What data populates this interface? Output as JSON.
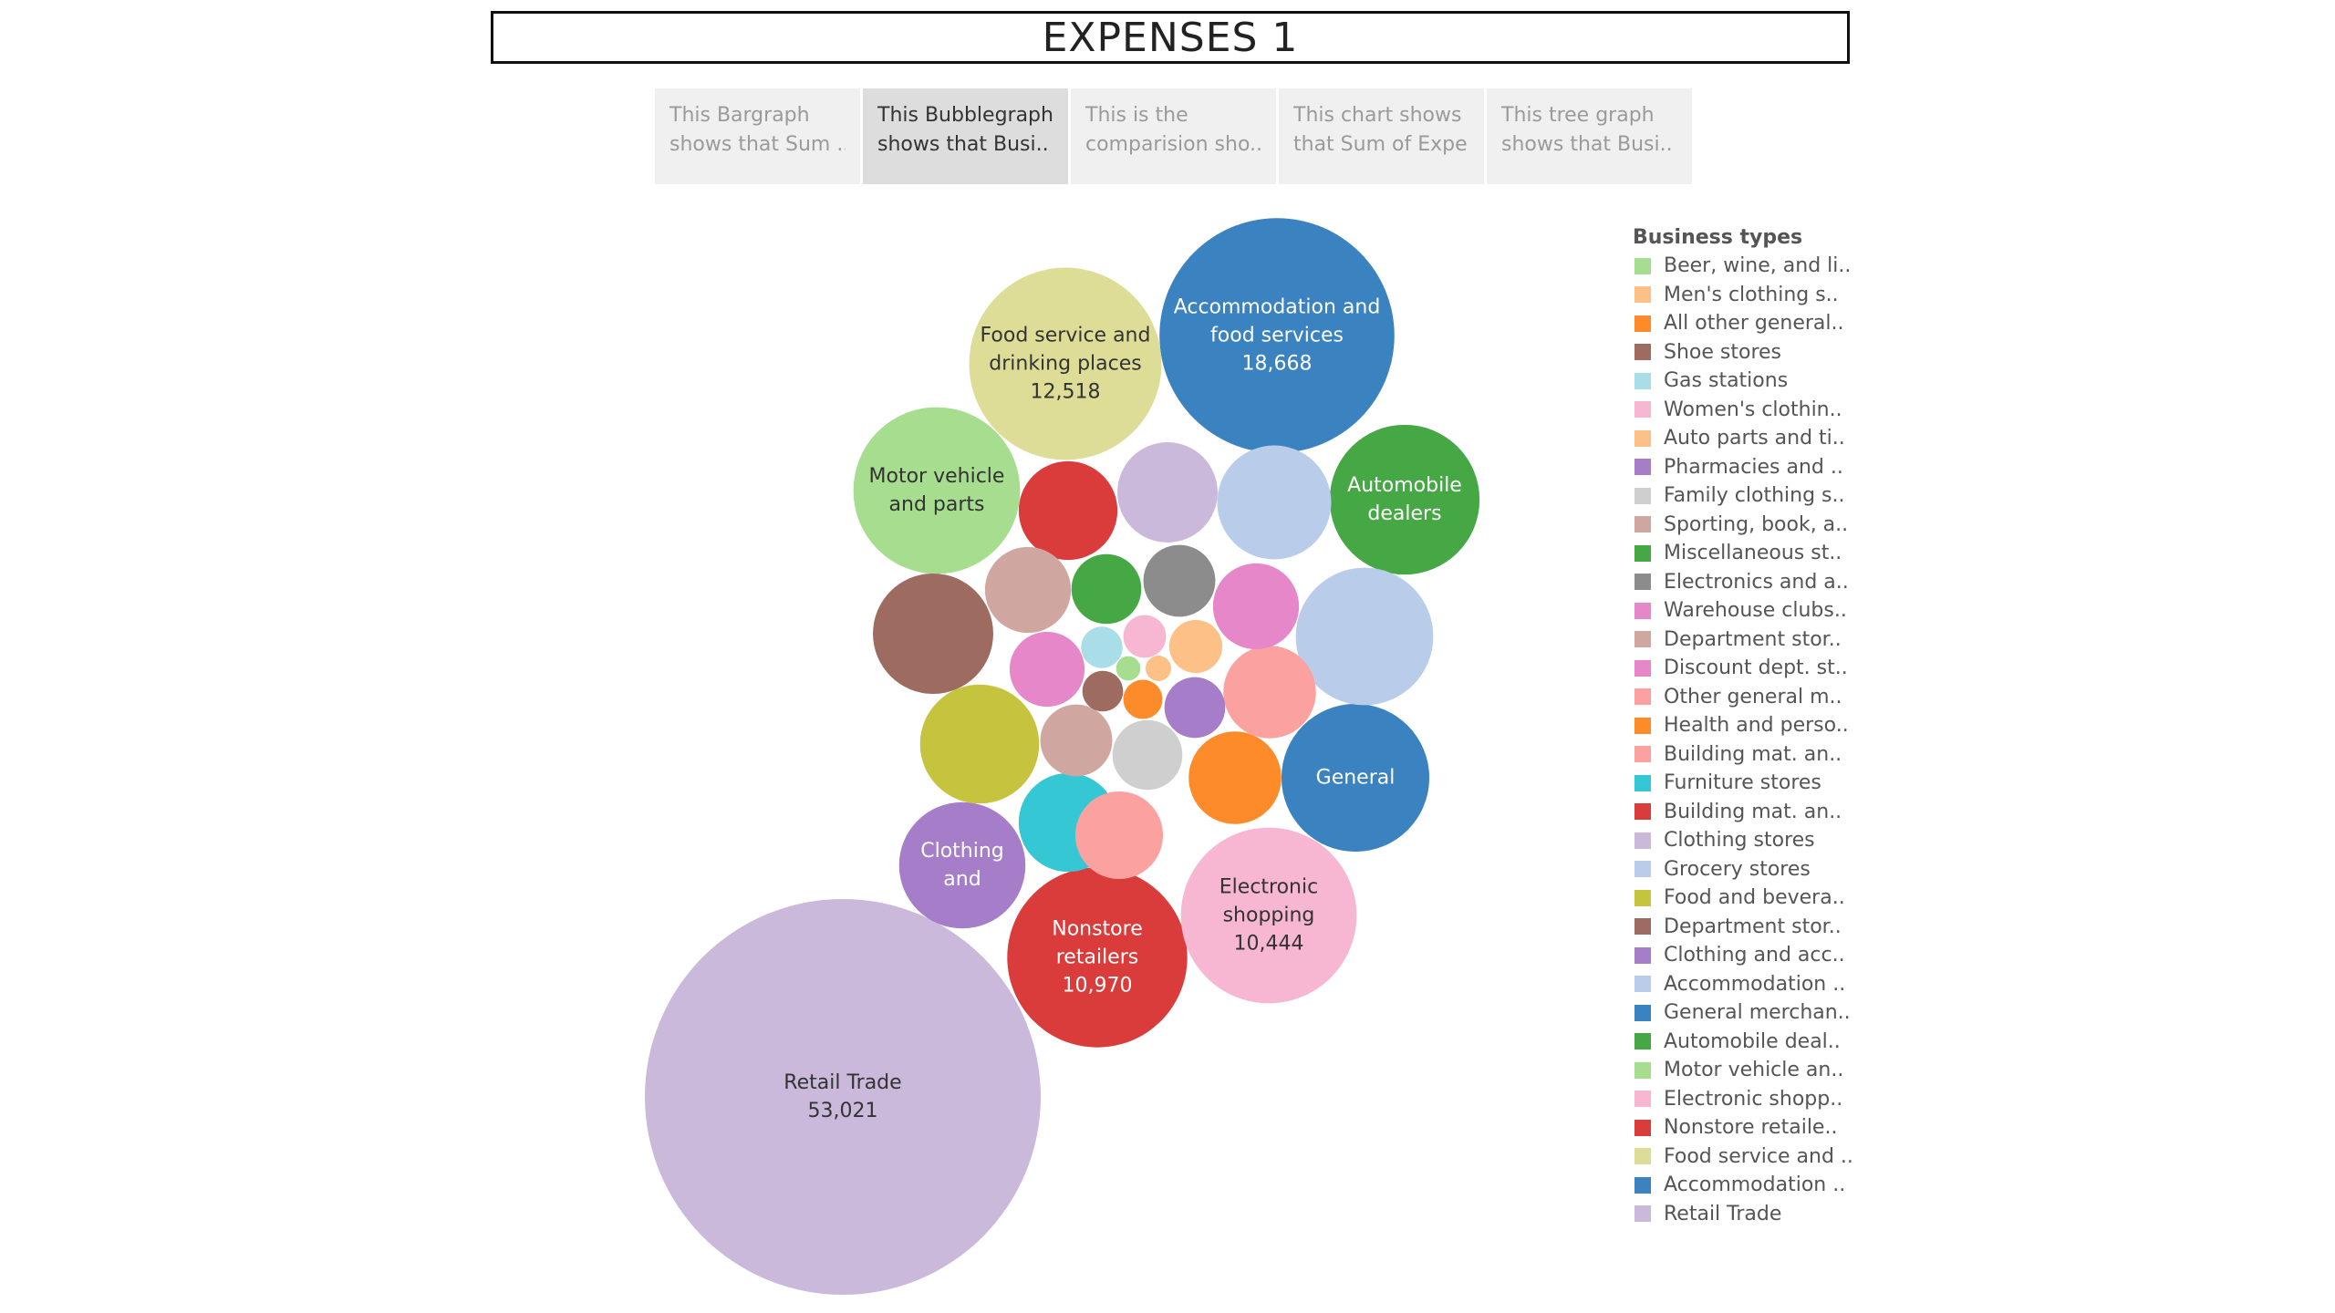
{
  "title": "EXPENSES 1",
  "story_tabs": [
    {
      "line1": "This Bargraph",
      "line2": "shows that Sum ..",
      "active": false
    },
    {
      "line1": "This Bubblegraph",
      "line2": "shows that Busi..",
      "active": true
    },
    {
      "line1": "This is the",
      "line2": "comparision sho..",
      "active": false
    },
    {
      "line1": "This chart shows",
      "line2": "that Sum of Expe..",
      "active": false
    },
    {
      "line1": "This tree graph",
      "line2": "shows that Busi..",
      "active": false
    }
  ],
  "legend": {
    "title": "Business types",
    "items": [
      {
        "label": "Beer, wine, and li..",
        "color": "#a6dd8f"
      },
      {
        "label": "Men's clothing s..",
        "color": "#fdc086"
      },
      {
        "label": "All other general..",
        "color": "#fe8b2a"
      },
      {
        "label": "Shoe stores",
        "color": "#9d6b5f"
      },
      {
        "label": "Gas stations",
        "color": "#a9dde8"
      },
      {
        "label": "Women's clothin..",
        "color": "#f7b6d2"
      },
      {
        "label": "Auto parts and ti..",
        "color": "#fdc086"
      },
      {
        "label": "Pharmacies and ..",
        "color": "#a57dc8"
      },
      {
        "label": "Family clothing s..",
        "color": "#cfcfcf"
      },
      {
        "label": "Sporting, book, a..",
        "color": "#cfa7a0"
      },
      {
        "label": "Miscellaneous st..",
        "color": "#45a844"
      },
      {
        "label": "Electronics and a..",
        "color": "#8c8c8c"
      },
      {
        "label": "Warehouse clubs..",
        "color": "#e587c8"
      },
      {
        "label": "Department stor..",
        "color": "#cfa7a0"
      },
      {
        "label": "Discount dept. st..",
        "color": "#e587c8"
      },
      {
        "label": "Other general m..",
        "color": "#fba2a0"
      },
      {
        "label": "Health and perso..",
        "color": "#fe8b2a"
      },
      {
        "label": "Building mat. an..",
        "color": "#fba2a0"
      },
      {
        "label": "Furniture stores",
        "color": "#35c7d4"
      },
      {
        "label": "Building mat. an..",
        "color": "#da3c3c"
      },
      {
        "label": "Clothing stores",
        "color": "#cbb9dc"
      },
      {
        "label": "Grocery stores",
        "color": "#b9cdeb"
      },
      {
        "label": "Food and bevera..",
        "color": "#c6c43e"
      },
      {
        "label": "Department stor..",
        "color": "#9d6b5f"
      },
      {
        "label": "Clothing and acc..",
        "color": "#a57dc8"
      },
      {
        "label": "Accommodation ..",
        "color": "#b9cdeb"
      },
      {
        "label": "General merchan..",
        "color": "#3a82c0"
      },
      {
        "label": "Automobile deal..",
        "color": "#45a844"
      },
      {
        "label": "Motor vehicle an..",
        "color": "#a6dd8f"
      },
      {
        "label": "Electronic shopp..",
        "color": "#f7b6d2"
      },
      {
        "label": "Nonstore retaile..",
        "color": "#da3c3c"
      },
      {
        "label": "Food service and ..",
        "color": "#dedd98"
      },
      {
        "label": "Accommodation ..",
        "color": "#3a82c0"
      },
      {
        "label": "Retail Trade",
        "color": "#cbb9dc"
      }
    ]
  },
  "chart_data": {
    "type": "bubble",
    "size_measure": "Sum of expenses",
    "bubbles": [
      {
        "label_lines": [
          "Retail Trade"
        ],
        "value": 53021,
        "value_label": "53,021",
        "color": "#cbb9dc",
        "text_color": "#333333"
      },
      {
        "label_lines": [
          "Accommodation and",
          "food services"
        ],
        "value": 18668,
        "value_label": "18,668",
        "color": "#3a82c0",
        "text_color": "#ffffff"
      },
      {
        "label_lines": [
          "Food service and",
          "drinking places"
        ],
        "value": 12518,
        "value_label": "12,518",
        "color": "#dedd98",
        "text_color": "#333333"
      },
      {
        "label_lines": [
          "Nonstore",
          "retailers"
        ],
        "value": 10970,
        "value_label": "10,970",
        "color": "#da3c3c",
        "text_color": "#ffffff"
      },
      {
        "label_lines": [
          "Electronic",
          "shopping"
        ],
        "value": 10444,
        "value_label": "10,444",
        "color": "#f7b6d2",
        "text_color": "#333333"
      },
      {
        "label_lines": [
          "Automobile",
          "dealers"
        ],
        "value": 7600,
        "color": "#45a844",
        "text_color": "#ffffff"
      },
      {
        "label_lines": [
          "Motor vehicle",
          "and parts"
        ],
        "value": 9400,
        "color": "#a6dd8f",
        "text_color": "#333333"
      },
      {
        "label_lines": [
          "General"
        ],
        "value": 7400,
        "color": "#3a82c0",
        "text_color": "#ffffff"
      },
      {
        "label_lines": [
          "Clothing",
          "and"
        ],
        "value": 5400,
        "color": "#a57dc8",
        "text_color": "#ffffff"
      },
      {
        "label_lines": [],
        "value": 6400,
        "color": "#b9cdeb",
        "text_color": "#333333"
      },
      {
        "label_lines": [],
        "value": 4900,
        "color": "#9d6b5f",
        "text_color": "#333333"
      },
      {
        "label_lines": [],
        "value": 4800,
        "color": "#c6c43e",
        "text_color": "#333333"
      },
      {
        "label_lines": [],
        "value": 4400,
        "color": "#b9cdeb",
        "text_color": "#333333"
      },
      {
        "label_lines": [],
        "value": 3400,
        "color": "#cbb9dc",
        "text_color": "#333333"
      },
      {
        "label_lines": [],
        "value": 3300,
        "color": "#35c7d4",
        "text_color": "#333333"
      },
      {
        "label_lines": [],
        "value": 3300,
        "color": "#da3c3c",
        "text_color": "#333333"
      },
      {
        "label_lines": [],
        "value": 2900,
        "color": "#fe8b2a",
        "text_color": "#333333"
      },
      {
        "label_lines": [],
        "value": 2900,
        "color": "#fba2a0",
        "text_color": "#333333"
      },
      {
        "label_lines": [],
        "value": 2600,
        "color": "#fba2a0",
        "text_color": "#333333"
      },
      {
        "label_lines": [],
        "value": 2500,
        "color": "#cfa7a0",
        "text_color": "#333333"
      },
      {
        "label_lines": [],
        "value": 2500,
        "color": "#e587c8",
        "text_color": "#333333"
      },
      {
        "label_lines": [],
        "value": 1900,
        "color": "#e587c8",
        "text_color": "#333333"
      },
      {
        "label_lines": [],
        "value": 1750,
        "color": "#8c8c8c",
        "text_color": "#333333"
      },
      {
        "label_lines": [],
        "value": 1750,
        "color": "#cfa7a0",
        "text_color": "#333333"
      },
      {
        "label_lines": [],
        "value": 1650,
        "color": "#45a844",
        "text_color": "#333333"
      },
      {
        "label_lines": [],
        "value": 1650,
        "color": "#cfcfcf",
        "text_color": "#333333"
      },
      {
        "label_lines": [],
        "value": 1250,
        "color": "#a57dc8",
        "text_color": "#333333"
      },
      {
        "label_lines": [],
        "value": 950,
        "color": "#fdc086",
        "text_color": "#333333"
      },
      {
        "label_lines": [],
        "value": 620,
        "color": "#f7b6d2",
        "text_color": "#333333"
      },
      {
        "label_lines": [],
        "value": 580,
        "color": "#a9dde8",
        "text_color": "#333333"
      },
      {
        "label_lines": [],
        "value": 560,
        "color": "#9d6b5f",
        "text_color": "#333333"
      },
      {
        "label_lines": [],
        "value": 520,
        "color": "#fe8b2a",
        "text_color": "#333333"
      },
      {
        "label_lines": [],
        "value": 220,
        "color": "#fdc086",
        "text_color": "#333333"
      },
      {
        "label_lines": [],
        "value": 200,
        "color": "#a6dd8f",
        "text_color": "#333333"
      }
    ]
  }
}
